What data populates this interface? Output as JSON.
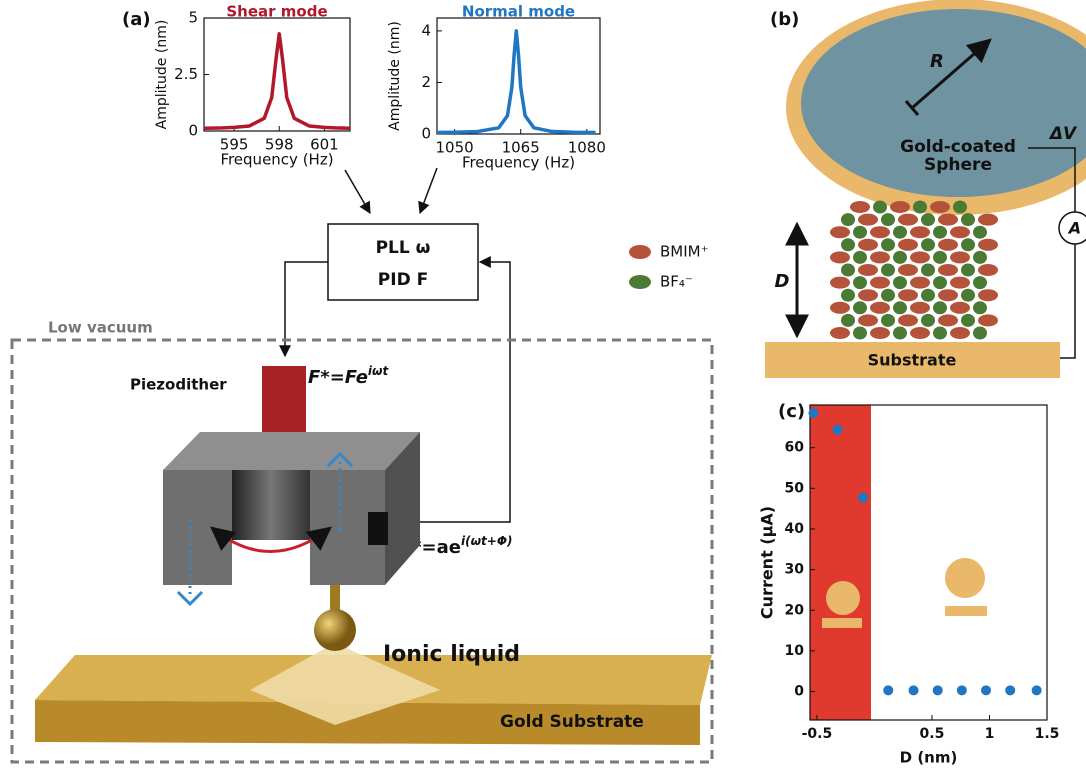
{
  "panel_labels": [
    "(a)",
    "(b)",
    "(c)"
  ],
  "chart_data": [
    {
      "type": "line",
      "title": "Shear mode",
      "title_color": "#b2182b",
      "x_label": "Frequency (Hz)",
      "y_label": "Amplitude (nm)",
      "x": [
        593,
        594,
        595,
        596,
        597,
        597.5,
        597.8,
        598,
        598.2,
        598.5,
        599,
        600,
        601,
        602,
        602.7
      ],
      "values": [
        0.12,
        0.13,
        0.16,
        0.22,
        0.56,
        1.48,
        3.27,
        4.3,
        3.27,
        1.48,
        0.56,
        0.22,
        0.16,
        0.13,
        0.12
      ],
      "color": "#b2182b",
      "xlim": [
        593,
        602.7
      ],
      "ylim": [
        0,
        5
      ],
      "xticks": [
        595,
        598,
        601
      ],
      "yticks": [
        0,
        2.5,
        5
      ]
    },
    {
      "type": "line",
      "title": "Normal mode",
      "title_color": "#1f77c4",
      "x_label": "Frequency (Hz)",
      "y_label": "Amplitude (nm)",
      "x": [
        1046,
        1050,
        1055,
        1060,
        1062,
        1063,
        1063.5,
        1064,
        1064.5,
        1065,
        1066,
        1068,
        1072,
        1077,
        1082
      ],
      "values": [
        0.06,
        0.07,
        0.09,
        0.24,
        0.71,
        1.82,
        3.06,
        4.0,
        3.06,
        1.82,
        0.71,
        0.24,
        0.1,
        0.07,
        0.06
      ],
      "color": "#1f77c4",
      "xlim": [
        1046,
        1083
      ],
      "ylim": [
        0,
        4.5
      ],
      "xticks": [
        1050,
        1065,
        1080
      ],
      "yticks": [
        0,
        2,
        4
      ]
    },
    {
      "type": "scatter",
      "x_label": "D (nm)",
      "y_label": "Current (μA)",
      "x": [
        -0.53,
        -0.32,
        -0.1,
        0.12,
        0.34,
        0.55,
        0.76,
        0.97,
        1.18,
        1.41
      ],
      "values": [
        68.5,
        64.4,
        47.7,
        0.3,
        0.3,
        0.3,
        0.3,
        0.3,
        0.3,
        0.3
      ],
      "color": "#1f77c4",
      "xlim": [
        -0.56,
        1.5
      ],
      "ylim": [
        -7,
        70.5
      ],
      "xticks": [
        -0.5,
        0.5,
        1,
        1.5
      ],
      "yticks": [
        0,
        10,
        20,
        30,
        40,
        50,
        60
      ],
      "highlight": {
        "x": [
          -0.56,
          -0.03
        ],
        "color": "#e0392d"
      }
    }
  ],
  "diagram": {
    "pll": "PLL ω",
    "pid": "PID F",
    "low_vacuum": "Low vacuum",
    "piezodither": "Piezodither",
    "force": {
      "base": "F*=Fe",
      "exp": "iωt"
    },
    "amplitude": {
      "base": "a*=ae",
      "exp": "i(ωt+Φ)"
    },
    "ionic_liquid": "Ionic liquid",
    "gold_substrate": "Gold Substrate",
    "radius": "R",
    "sphere": [
      "Gold-coated",
      "Sphere"
    ],
    "voltage": "ΔV",
    "ammeter": "A",
    "distance": "D",
    "substrate": "Substrate",
    "legend": [
      {
        "name": "BMIM⁺",
        "color": "#b5523a"
      },
      {
        "name": "BF₄⁻",
        "color": "#4a7a34"
      }
    ]
  }
}
